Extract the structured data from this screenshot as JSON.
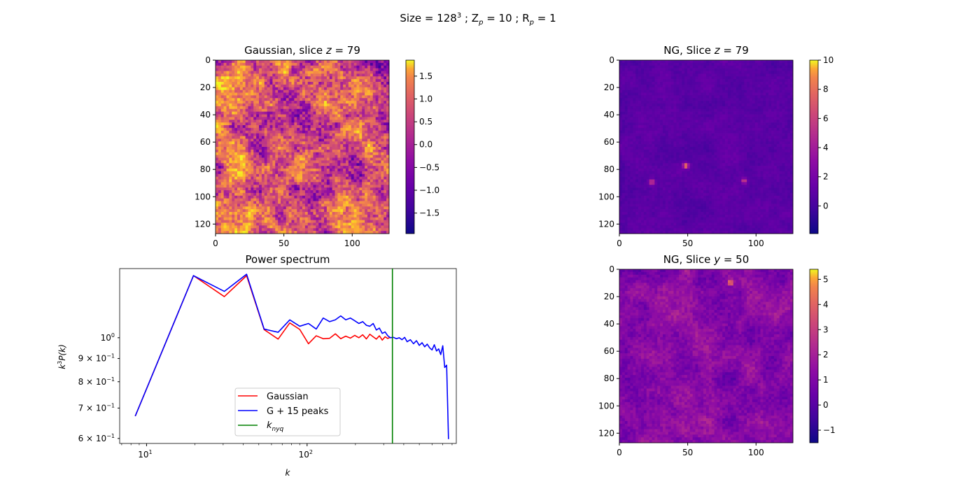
{
  "suptitle": {
    "prefix": "Size ",
    "eq1": " = 128",
    "sup": "3",
    "sep1": " ; Z",
    "sub1": "p",
    "eq2": " = 10 ; R",
    "sub2": "p",
    "eq3": " = 1"
  },
  "chart_data": [
    {
      "type": "heatmap",
      "title_text": "Gaussian, slice ",
      "title_var": "z",
      "title_eq": " = 79",
      "xlim": [
        0,
        127
      ],
      "ylim": [
        0,
        127
      ],
      "xticks": [
        "0",
        "50",
        "100"
      ],
      "yticks": [
        "0",
        "20",
        "40",
        "60",
        "80",
        "100",
        "120"
      ],
      "colormap": "plasma",
      "colorbar": {
        "min": -1.95,
        "max": 1.85,
        "ticks": [
          "1.5",
          "1.0",
          "0.5",
          "0.0",
          "−0.5",
          "−1.0",
          "−1.5"
        ],
        "tick_values": [
          1.5,
          1.0,
          0.5,
          0.0,
          -0.5,
          -1.0,
          -1.5
        ]
      },
      "field": {
        "mean_level": 0.55,
        "contrast": 0.42,
        "peaks": []
      }
    },
    {
      "type": "heatmap",
      "title_text": "NG, Slice ",
      "title_var": "z",
      "title_eq": " = 79",
      "xlim": [
        0,
        127
      ],
      "ylim": [
        0,
        127
      ],
      "xticks": [
        "0",
        "50",
        "100"
      ],
      "yticks": [
        "0",
        "20",
        "40",
        "60",
        "80",
        "100",
        "120"
      ],
      "colormap": "plasma",
      "colorbar": {
        "min": -1.9,
        "max": 10.0,
        "ticks": [
          "10",
          "8",
          "6",
          "4",
          "2",
          "0"
        ],
        "tick_values": [
          10,
          8,
          6,
          4,
          2,
          0
        ]
      },
      "field": {
        "mean_level": 0.16,
        "contrast": 0.05,
        "peaks": [
          {
            "x": 48,
            "y": 77,
            "level": 0.72
          },
          {
            "x": 23,
            "y": 89,
            "level": 0.55
          },
          {
            "x": 91,
            "y": 88,
            "level": 0.5
          }
        ]
      }
    },
    {
      "type": "line",
      "title": "Power spectrum",
      "xlabel_main": "k",
      "ylabel": {
        "k": "k",
        "sup": "3",
        "rest": "P(k)"
      },
      "xscale": "log",
      "yscale": "log",
      "xlim": [
        6.8,
        850
      ],
      "ylim": [
        0.585,
        1.42
      ],
      "xticks": [
        {
          "value": 10,
          "base": "10",
          "exp": "1"
        },
        {
          "value": 100,
          "base": "10",
          "exp": "2"
        }
      ],
      "yticks": [
        {
          "value": 1.0,
          "coef": "",
          "base": "10",
          "exp": "0"
        },
        {
          "value": 0.9,
          "coef": "9 × ",
          "base": "10",
          "exp": "−1"
        },
        {
          "value": 0.8,
          "coef": "8 × ",
          "base": "10",
          "exp": "−1"
        },
        {
          "value": 0.7,
          "coef": "7 × ",
          "base": "10",
          "exp": "−1"
        },
        {
          "value": 0.6,
          "coef": "6 × ",
          "base": "10",
          "exp": "−1"
        }
      ],
      "vline": {
        "x": 340,
        "color": "#008000"
      },
      "series": [
        {
          "name": "Gaussian",
          "color": "#ff0000",
          "x": [
            8.5,
            19.6,
            30.5,
            42,
            54,
            66,
            78,
            90,
            102,
            114,
            126,
            138,
            150,
            162,
            174,
            186,
            198,
            210,
            222,
            234,
            246,
            258,
            270,
            282,
            294,
            306,
            318,
            330
          ],
          "y": [
            0.672,
            1.37,
            1.232,
            1.37,
            1.042,
            0.993,
            1.078,
            1.043,
            0.97,
            1.01,
            0.995,
            0.997,
            1.02,
            0.995,
            1.008,
            0.998,
            1.012,
            1.0,
            1.015,
            0.994,
            1.018,
            1.005,
            0.993,
            1.01,
            0.988,
            1.005,
            0.996,
            1.003
          ]
        },
        {
          "name": "G +  15 peaks",
          "color": "#0000ff",
          "x": [
            8.5,
            19.6,
            30.5,
            42,
            54,
            66,
            78,
            90,
            102,
            114,
            126,
            138,
            150,
            162,
            174,
            186,
            198,
            210,
            222,
            234,
            246,
            258,
            270,
            282,
            294,
            306,
            318,
            330,
            345,
            360,
            375,
            390,
            405,
            420,
            440,
            460,
            480,
            500,
            520,
            540,
            560,
            580,
            600,
            620,
            640,
            660,
            680,
            700,
            720,
            740,
            760
          ],
          "y": [
            0.672,
            1.37,
            1.265,
            1.38,
            1.045,
            1.028,
            1.095,
            1.06,
            1.075,
            1.045,
            1.105,
            1.085,
            1.095,
            1.117,
            1.095,
            1.105,
            1.09,
            1.075,
            1.085,
            1.065,
            1.06,
            1.075,
            1.04,
            1.05,
            1.022,
            1.03,
            1.01,
            1.0,
            1.002,
            0.995,
            1.0,
            0.99,
            1.002,
            0.98,
            0.99,
            0.97,
            0.985,
            0.962,
            0.975,
            0.955,
            0.968,
            0.95,
            0.94,
            0.965,
            0.935,
            0.945,
            0.918,
            0.96,
            0.86,
            0.87,
            0.598
          ]
        },
        {
          "name": "k_nyq",
          "color": "#008000",
          "x": [
            340,
            340
          ],
          "y": [
            0.585,
            1.42
          ]
        }
      ],
      "legend": {
        "placement": "lower-center",
        "entries": [
          {
            "label": "Gaussian",
            "color": "#ff0000"
          },
          {
            "label": "G +  15 peaks",
            "color": "#0000ff"
          },
          {
            "label_main": "k",
            "label_sub": "nyq",
            "color": "#008000"
          }
        ]
      }
    },
    {
      "type": "heatmap",
      "title_text": "NG, Slice ",
      "title_var": "y",
      "title_eq": " = 50",
      "xlim": [
        0,
        127
      ],
      "ylim": [
        0,
        127
      ],
      "xticks": [
        "0",
        "50",
        "100"
      ],
      "yticks": [
        "0",
        "20",
        "40",
        "60",
        "80",
        "100",
        "120"
      ],
      "colormap": "plasma",
      "colorbar": {
        "min": -1.5,
        "max": 5.4,
        "ticks": [
          "5",
          "4",
          "3",
          "2",
          "1",
          "0",
          "−1"
        ],
        "tick_values": [
          5,
          4,
          3,
          2,
          1,
          0,
          -1
        ]
      },
      "field": {
        "mean_level": 0.27,
        "contrast": 0.12,
        "peaks": [
          {
            "x": 81,
            "y": 9,
            "level": 0.78
          }
        ]
      }
    }
  ]
}
